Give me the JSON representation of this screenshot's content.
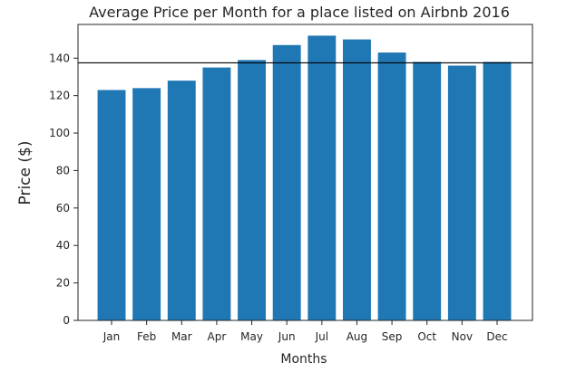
{
  "chart_data": {
    "type": "bar",
    "title": "Average Price per Month for a place listed on Airbnb 2016",
    "xlabel": "Months",
    "ylabel": "Price ($)",
    "categories": [
      "Jan",
      "Feb",
      "Mar",
      "Apr",
      "May",
      "Jun",
      "Jul",
      "Aug",
      "Sep",
      "Oct",
      "Nov",
      "Dec"
    ],
    "values": [
      123,
      124,
      128,
      135,
      139,
      147,
      152,
      150,
      143,
      138,
      136,
      138
    ],
    "ylim": [
      0,
      158
    ],
    "yticks": [
      0,
      20,
      40,
      60,
      80,
      100,
      120,
      140
    ],
    "reference_line": 137.5,
    "grid": false,
    "colors": {
      "bar": "#1f77b4",
      "reference_line": "#000000",
      "text": "#262626"
    }
  }
}
